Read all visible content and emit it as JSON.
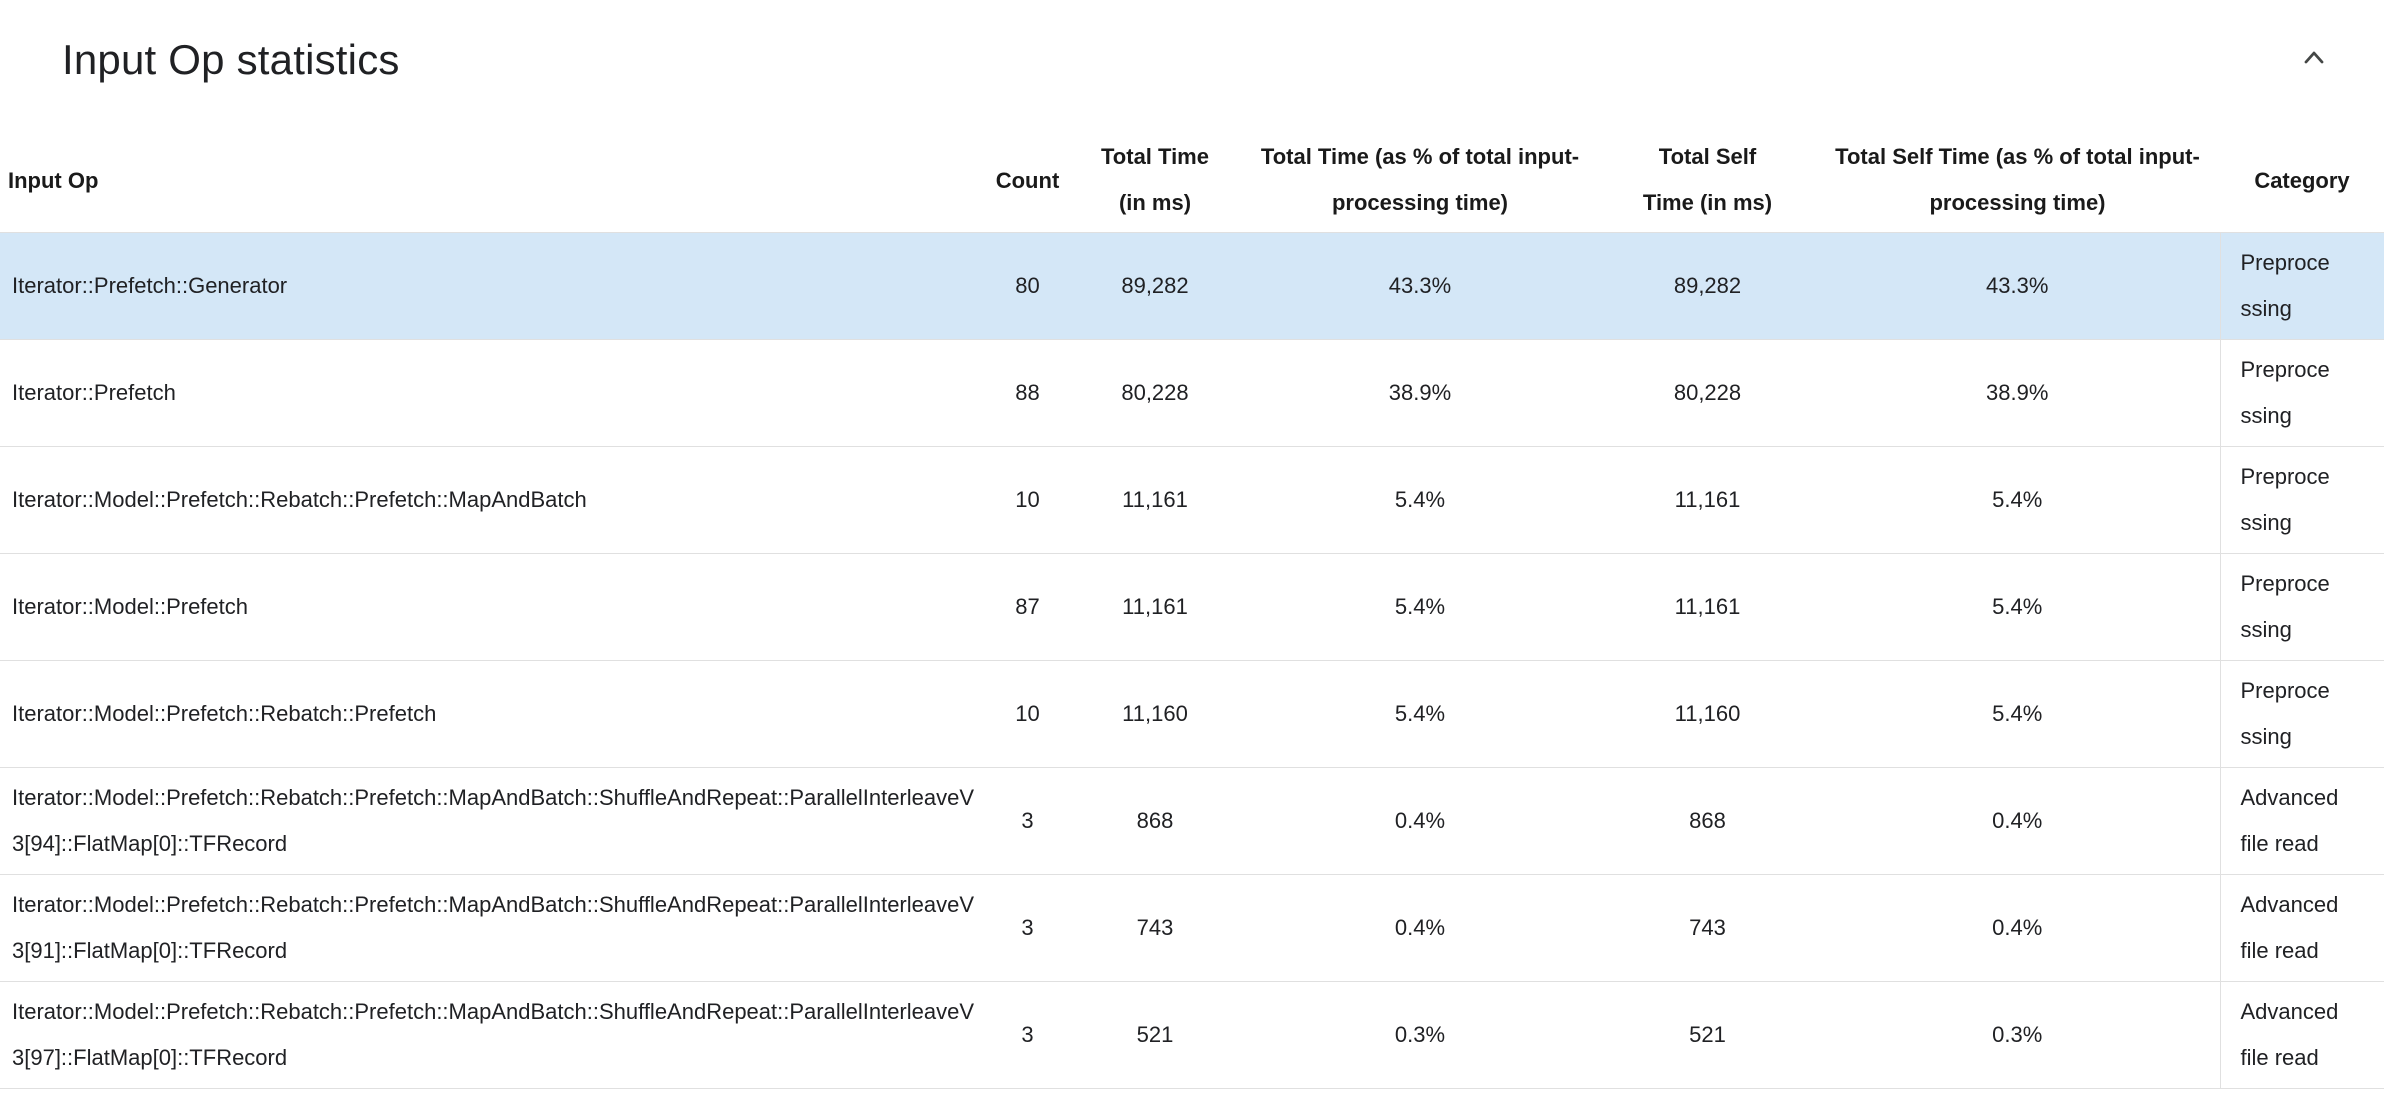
{
  "section": {
    "title": "Input Op statistics"
  },
  "icons": {
    "collapse": "chevron-up"
  },
  "colors": {
    "highlight_row": "#d4e7f7",
    "row_border": "#e0e0e0",
    "text": "#202124"
  },
  "table": {
    "columns": [
      {
        "id": "input-op",
        "label": "Input Op"
      },
      {
        "id": "count",
        "label": "Count"
      },
      {
        "id": "total-time",
        "label": "Total Time (in ms)"
      },
      {
        "id": "total-time-pct",
        "label": "Total Time (as % of total input-processing time)"
      },
      {
        "id": "total-self-time",
        "label": "Total Self Time (in ms)"
      },
      {
        "id": "total-self-time-pct",
        "label": "Total Self Time (as % of total input-processing time)"
      },
      {
        "id": "category",
        "label": "Category"
      }
    ],
    "rows": [
      {
        "highlighted": true,
        "cells": [
          "Iterator::Prefetch::Generator",
          "80",
          "89,282",
          "43.3%",
          "89,282",
          "43.3%",
          "Preprocessing"
        ]
      },
      {
        "highlighted": false,
        "cells": [
          "Iterator::Prefetch",
          "88",
          "80,228",
          "38.9%",
          "80,228",
          "38.9%",
          "Preprocessing"
        ]
      },
      {
        "highlighted": false,
        "cells": [
          "Iterator::Model::Prefetch::Rebatch::Prefetch::MapAndBatch",
          "10",
          "11,161",
          "5.4%",
          "11,161",
          "5.4%",
          "Preprocessing"
        ]
      },
      {
        "highlighted": false,
        "cells": [
          "Iterator::Model::Prefetch",
          "87",
          "11,161",
          "5.4%",
          "11,161",
          "5.4%",
          "Preprocessing"
        ]
      },
      {
        "highlighted": false,
        "cells": [
          "Iterator::Model::Prefetch::Rebatch::Prefetch",
          "10",
          "11,160",
          "5.4%",
          "11,160",
          "5.4%",
          "Preprocessing"
        ]
      },
      {
        "highlighted": false,
        "cells": [
          "Iterator::Model::Prefetch::Rebatch::Prefetch::MapAndBatch::ShuffleAndRepeat::ParallelInterleaveV3[94]::FlatMap[0]::TFRecord",
          "3",
          "868",
          "0.4%",
          "868",
          "0.4%",
          "Advanced file read"
        ]
      },
      {
        "highlighted": false,
        "cells": [
          "Iterator::Model::Prefetch::Rebatch::Prefetch::MapAndBatch::ShuffleAndRepeat::ParallelInterleaveV3[91]::FlatMap[0]::TFRecord",
          "3",
          "743",
          "0.4%",
          "743",
          "0.4%",
          "Advanced file read"
        ]
      },
      {
        "highlighted": false,
        "cells": [
          "Iterator::Model::Prefetch::Rebatch::Prefetch::MapAndBatch::ShuffleAndRepeat::ParallelInterleaveV3[97]::FlatMap[0]::TFRecord",
          "3",
          "521",
          "0.3%",
          "521",
          "0.3%",
          "Advanced file read"
        ]
      }
    ]
  }
}
